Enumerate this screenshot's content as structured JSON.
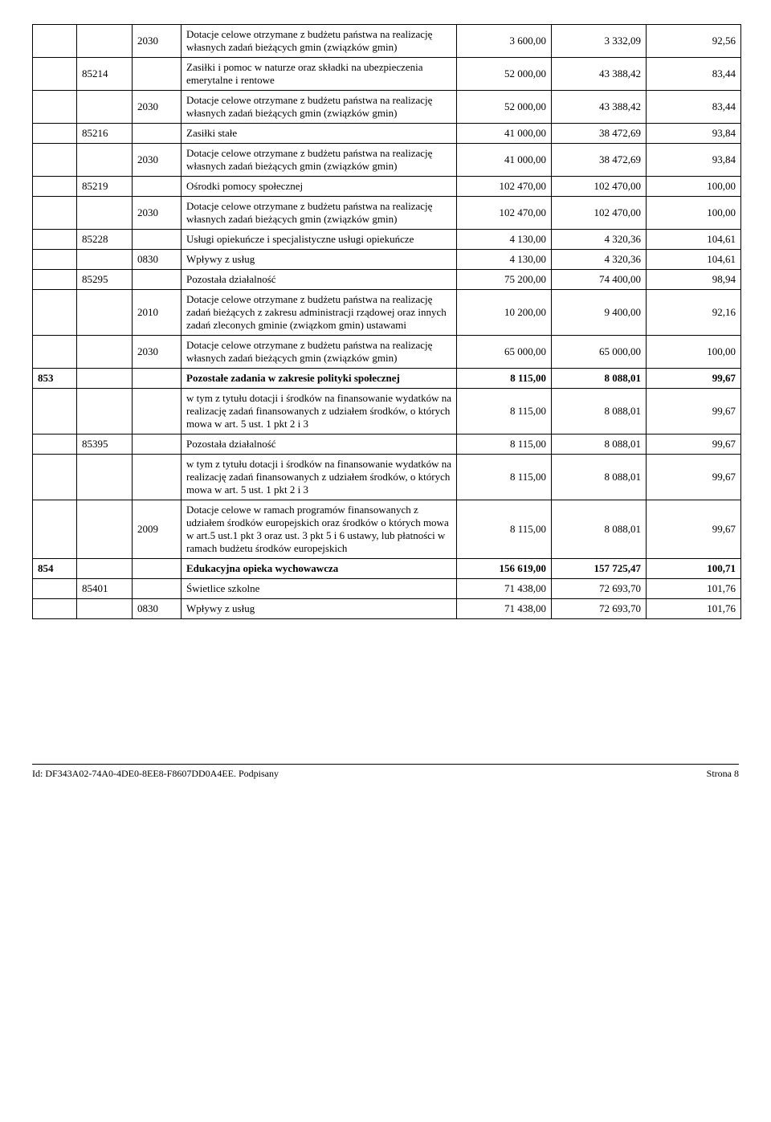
{
  "rows": [
    {
      "c3": "2030",
      "c4": "Dotacje celowe otrzymane z budżetu państwa na realizację własnych zadań bieżących gmin (związków gmin)",
      "c5": "3 600,00",
      "c6": "3 332,09",
      "c7": "92,56"
    },
    {
      "c2": "85214",
      "c4": "Zasiłki i pomoc w naturze oraz składki na ubezpieczenia emerytalne i rentowe",
      "c5": "52 000,00",
      "c6": "43 388,42",
      "c7": "83,44"
    },
    {
      "c3": "2030",
      "c4": "Dotacje celowe otrzymane z budżetu państwa na realizację własnych zadań bieżących gmin (związków gmin)",
      "c5": "52 000,00",
      "c6": "43 388,42",
      "c7": "83,44"
    },
    {
      "c2": "85216",
      "c4": "Zasiłki stałe",
      "c5": "41 000,00",
      "c6": "38 472,69",
      "c7": "93,84"
    },
    {
      "c3": "2030",
      "c4": "Dotacje celowe otrzymane z budżetu państwa na realizację własnych zadań bieżących gmin (związków gmin)",
      "c5": "41 000,00",
      "c6": "38 472,69",
      "c7": "93,84"
    },
    {
      "c2": "85219",
      "c4": "Ośrodki pomocy społecznej",
      "c5": "102 470,00",
      "c6": "102 470,00",
      "c7": "100,00"
    },
    {
      "c3": "2030",
      "c4": "Dotacje celowe otrzymane z budżetu państwa na realizację własnych zadań bieżących gmin (związków gmin)",
      "c5": "102 470,00",
      "c6": "102 470,00",
      "c7": "100,00"
    },
    {
      "c2": "85228",
      "c4": "Usługi opiekuńcze i specjalistyczne usługi opiekuńcze",
      "c5": "4 130,00",
      "c6": "4 320,36",
      "c7": "104,61"
    },
    {
      "c3": "0830",
      "c4": "Wpływy z usług",
      "c5": "4 130,00",
      "c6": "4 320,36",
      "c7": "104,61"
    },
    {
      "c2": "85295",
      "c4": "Pozostała działalność",
      "c5": "75 200,00",
      "c6": "74 400,00",
      "c7": "98,94"
    },
    {
      "c3": "2010",
      "c4": "Dotacje celowe otrzymane z budżetu państwa na realizację zadań bieżących z zakresu administracji rządowej oraz innych zadań zleconych gminie (związkom gmin) ustawami",
      "c5": "10 200,00",
      "c6": "9 400,00",
      "c7": "92,16"
    },
    {
      "c3": "2030",
      "c4": "Dotacje celowe otrzymane z budżetu państwa na realizację własnych zadań bieżących gmin (związków gmin)",
      "c5": "65 000,00",
      "c6": "65 000,00",
      "c7": "100,00"
    },
    {
      "c1": "853",
      "c4": "Pozostałe zadania w zakresie polityki społecznej",
      "c5": "8 115,00",
      "c6": "8 088,01",
      "c7": "99,67",
      "bold": true
    },
    {
      "c4": "w tym z tytułu dotacji i środków na finansowanie wydatków na realizację zadań finansowanych z udziałem środków, o których mowa w art. 5 ust. 1 pkt 2 i 3",
      "c5": "8 115,00",
      "c6": "8 088,01",
      "c7": "99,67"
    },
    {
      "c2": "85395",
      "c4": "Pozostała działalność",
      "c5": "8 115,00",
      "c6": "8 088,01",
      "c7": "99,67"
    },
    {
      "c4": "w tym z tytułu dotacji i środków na finansowanie wydatków na realizację zadań finansowanych z udziałem środków, o których mowa w art. 5 ust. 1 pkt 2 i 3",
      "c5": "8 115,00",
      "c6": "8 088,01",
      "c7": "99,67"
    },
    {
      "c3": "2009",
      "c4": "Dotacje celowe w ramach programów finansowanych z udziałem środków europejskich oraz środków o których mowa w art.5 ust.1 pkt 3 oraz ust. 3 pkt 5 i 6 ustawy, lub płatności w ramach budżetu środków europejskich",
      "c5": "8 115,00",
      "c6": "8 088,01",
      "c7": "99,67"
    },
    {
      "c1": "854",
      "c4": "Edukacyjna opieka wychowawcza",
      "c5": "156 619,00",
      "c6": "157 725,47",
      "c7": "100,71",
      "bold": true
    },
    {
      "c2": "85401",
      "c4": "Świetlice szkolne",
      "c5": "71 438,00",
      "c6": "72 693,70",
      "c7": "101,76"
    },
    {
      "c3": "0830",
      "c4": "Wpływy z usług",
      "c5": "71 438,00",
      "c6": "72 693,70",
      "c7": "101,76"
    }
  ],
  "footer": {
    "id": "Id: DF343A02-74A0-4DE0-8EE8-F8607DD0A4EE. Podpisany",
    "page": "Strona 8"
  }
}
